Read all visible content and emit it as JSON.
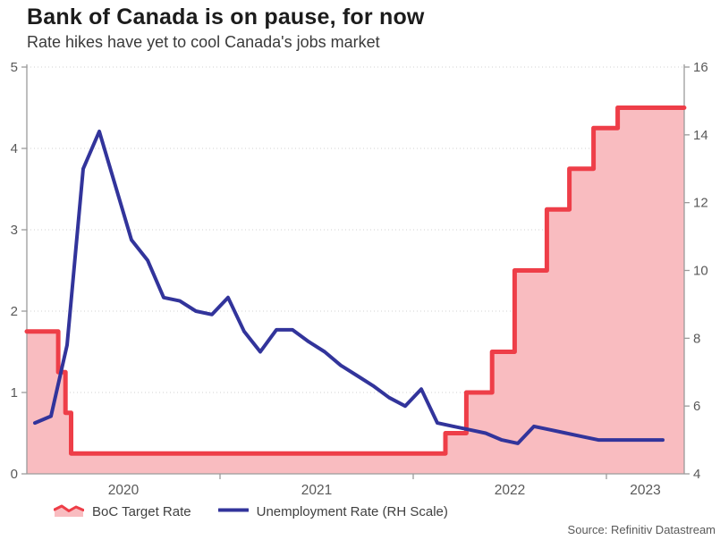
{
  "header": {
    "title": "Bank of Canada is on pause, for now",
    "subtitle": "Rate hikes have yet to cool Canada's jobs market"
  },
  "legend": {
    "items": [
      {
        "label": "BoC Target Rate",
        "swatch": "area-swatch-icon",
        "color": "#ee3e48",
        "fill": "#f9bcc0"
      },
      {
        "label": "Unemployment Rate (RH Scale)",
        "swatch": "line-swatch-icon",
        "color": "#32349b"
      }
    ]
  },
  "footer": {
    "source": "Source: Refinitiv Datastream"
  },
  "chart_data": {
    "type": "line",
    "title": "Bank of Canada is on pause, for now",
    "subtitle": "Rate hikes have yet to cool Canada's jobs market",
    "grid": "dotted-horizontal",
    "legend_position": "bottom-left",
    "x_axis": {
      "start": "2020-01",
      "end": "2023-05",
      "year_labels": [
        "2020",
        "2021",
        "2022",
        "2023"
      ],
      "year_boundary_tick_months": [
        12,
        24,
        36
      ]
    },
    "left_axis": {
      "range": [
        0,
        5
      ],
      "ticks": [
        0,
        1,
        2,
        3,
        4,
        5
      ]
    },
    "right_axis": {
      "range": [
        4,
        16
      ],
      "ticks": [
        4,
        6,
        8,
        10,
        12,
        14,
        16
      ]
    },
    "series": [
      {
        "name": "BoC Target Rate",
        "type": "step-area",
        "axis": "left",
        "color": "#ee3e48",
        "fill": "#f9bcc0",
        "steps_month_value": [
          [
            0,
            1.75
          ],
          [
            1.95,
            1.25
          ],
          [
            2.4,
            0.75
          ],
          [
            2.75,
            0.25
          ],
          [
            26.0,
            0.5
          ],
          [
            27.3,
            1.0
          ],
          [
            28.9,
            1.5
          ],
          [
            30.3,
            2.5
          ],
          [
            32.3,
            3.25
          ],
          [
            33.7,
            3.75
          ],
          [
            35.2,
            4.25
          ],
          [
            36.7,
            4.5
          ]
        ],
        "end_month": 40.83
      },
      {
        "name": "Unemployment Rate (RH Scale)",
        "type": "line",
        "axis": "right",
        "color": "#32349b",
        "start_month_offset": 0.5,
        "monthly_values": [
          5.5,
          5.7,
          7.8,
          13.0,
          14.1,
          12.5,
          10.9,
          10.3,
          9.2,
          9.1,
          8.8,
          8.7,
          9.2,
          8.2,
          7.6,
          8.25,
          8.25,
          7.9,
          7.6,
          7.2,
          6.9,
          6.6,
          6.25,
          6.0,
          6.5,
          5.5,
          5.4,
          5.3,
          5.2,
          5.0,
          4.9,
          5.4,
          5.3,
          5.2,
          5.1,
          5.0,
          5.0,
          5.0,
          5.0,
          5.0
        ]
      }
    ],
    "colors": {
      "grid": "#d2d2d2",
      "axis": "#9b9b9b",
      "tick_label": "#595959"
    }
  }
}
